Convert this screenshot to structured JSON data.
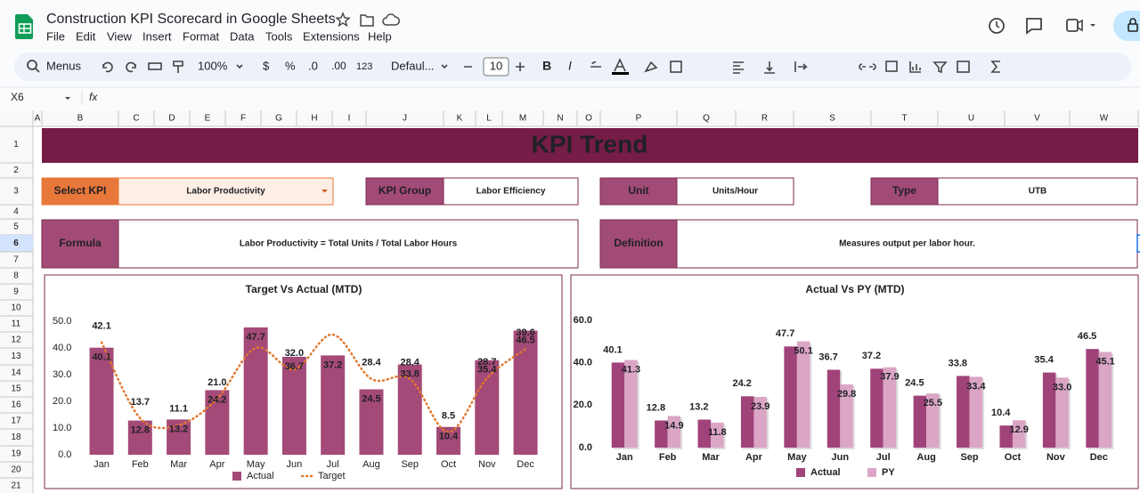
{
  "app": {
    "title": "Construction KPI Scorecard in Google Sheets",
    "menu": [
      "File",
      "Edit",
      "View",
      "Insert",
      "Format",
      "Data",
      "Tools",
      "Extensions",
      "Help"
    ],
    "toolbar": {
      "search": "Menus",
      "zoom": "100%",
      "currency": "$",
      "percent": "%",
      "decrease_decimal": ".0",
      "increase_decimal": ".00",
      "number_format": "123",
      "font": "Defaul...",
      "font_size": "10",
      "bold": "B",
      "italic": "I"
    },
    "name_box": "X6",
    "formula_icon": "fx"
  },
  "grid": {
    "columns": [
      "A",
      "B",
      "C",
      "D",
      "E",
      "F",
      "G",
      "H",
      "I",
      "J",
      "K",
      "L",
      "M",
      "N",
      "O",
      "P",
      "Q",
      "R",
      "S",
      "T",
      "U",
      "V",
      "W"
    ],
    "rows": [
      1,
      2,
      3,
      4,
      5,
      6,
      7,
      8,
      9,
      10,
      11,
      12,
      13,
      14,
      15,
      16,
      17,
      18,
      19,
      20,
      21
    ]
  },
  "sheet": {
    "title": "KPI Trend",
    "fields": [
      {
        "label": "Select KPI",
        "value": "Labor Productivity"
      },
      {
        "label": "KPI Group",
        "value": "Labor Efficiency"
      },
      {
        "label": "Unit",
        "value": "Units/Hour"
      },
      {
        "label": "Type",
        "value": "UTB"
      },
      {
        "label": "Formula",
        "value": "Labor Productivity = Total Units / Total Labor Hours"
      },
      {
        "label": "Definition",
        "value": "Measures output per labor hour."
      }
    ]
  },
  "chart_data": [
    {
      "type": "bar",
      "title": "Target Vs Actual (MTD)",
      "categories": [
        "Jan",
        "Feb",
        "Mar",
        "Apr",
        "May",
        "Jun",
        "Jul",
        "Aug",
        "Sep",
        "Oct",
        "Nov",
        "Dec"
      ],
      "series": [
        {
          "name": "Actual",
          "type": "bar",
          "color": "#a44a78",
          "values": [
            40.1,
            12.8,
            13.2,
            24.2,
            47.7,
            36.7,
            37.2,
            24.5,
            33.8,
            10.4,
            35.4,
            46.5
          ],
          "value_labels": [
            "40.1",
            "12.8",
            "13.2",
            "24.2",
            "47.7",
            "36.7",
            "37.2",
            "24.5",
            "33.8",
            "10.4",
            "35.4",
            "46.5"
          ]
        },
        {
          "name": "Target",
          "type": "line",
          "line_style": "dotted",
          "color": "#e2772d",
          "values": [
            42.1,
            13.7,
            11.1,
            21.0,
            40,
            32.0,
            45,
            28.4,
            28.4,
            8.5,
            28.7,
            39.6
          ],
          "value_labels": [
            "42.1",
            "13.7",
            "11.1",
            "21.0",
            null,
            "32.0",
            null,
            "28.4",
            "28.4",
            "8.5",
            "28.7",
            "39.6"
          ]
        }
      ],
      "ylim": [
        0,
        50
      ],
      "yticks": [
        {
          "value": 0,
          "label": "0.0"
        },
        {
          "value": 10,
          "label": "10.0"
        },
        {
          "value": 20,
          "label": "20.0"
        },
        {
          "value": 30,
          "label": "30.0"
        },
        {
          "value": 40,
          "label": "40.0"
        },
        {
          "value": 50,
          "label": "50.0"
        }
      ],
      "grid": false,
      "legend": "bottom"
    },
    {
      "type": "bar",
      "title": "Actual Vs PY (MTD)",
      "categories": [
        "Jan",
        "Feb",
        "Mar",
        "Apr",
        "May",
        "Jun",
        "Jul",
        "Aug",
        "Sep",
        "Oct",
        "Nov",
        "Dec"
      ],
      "series": [
        {
          "name": "Actual",
          "color": "#a0437a",
          "values": [
            40.1,
            12.8,
            13.2,
            24.2,
            47.7,
            36.7,
            37.2,
            24.5,
            33.8,
            10.4,
            35.4,
            46.5
          ],
          "value_labels": [
            "40.1",
            "12.8",
            "13.2",
            "24.2",
            "47.7",
            "36.7",
            "37.2",
            "24.5",
            "33.8",
            "10.4",
            "35.4",
            "46.5"
          ]
        },
        {
          "name": "PY",
          "color": "#dba6c6",
          "values": [
            41.3,
            14.9,
            11.8,
            23.9,
            50.1,
            29.8,
            37.9,
            25.5,
            33.4,
            12.9,
            33.0,
            45.1
          ],
          "value_labels": [
            "41.3",
            "14.9",
            "11.8",
            "23.9",
            "50.1",
            "29.8",
            "37.9",
            "25.5",
            "33.4",
            "12.9",
            "33.0",
            "45.1"
          ]
        }
      ],
      "ylim": [
        0,
        60
      ],
      "yticks": [
        {
          "value": 0,
          "label": "0.0"
        },
        {
          "value": 20,
          "label": "20.0"
        },
        {
          "value": 40,
          "label": "40.0"
        },
        {
          "value": 60,
          "label": "60.0"
        }
      ],
      "grid": false,
      "legend": "bottom"
    }
  ]
}
